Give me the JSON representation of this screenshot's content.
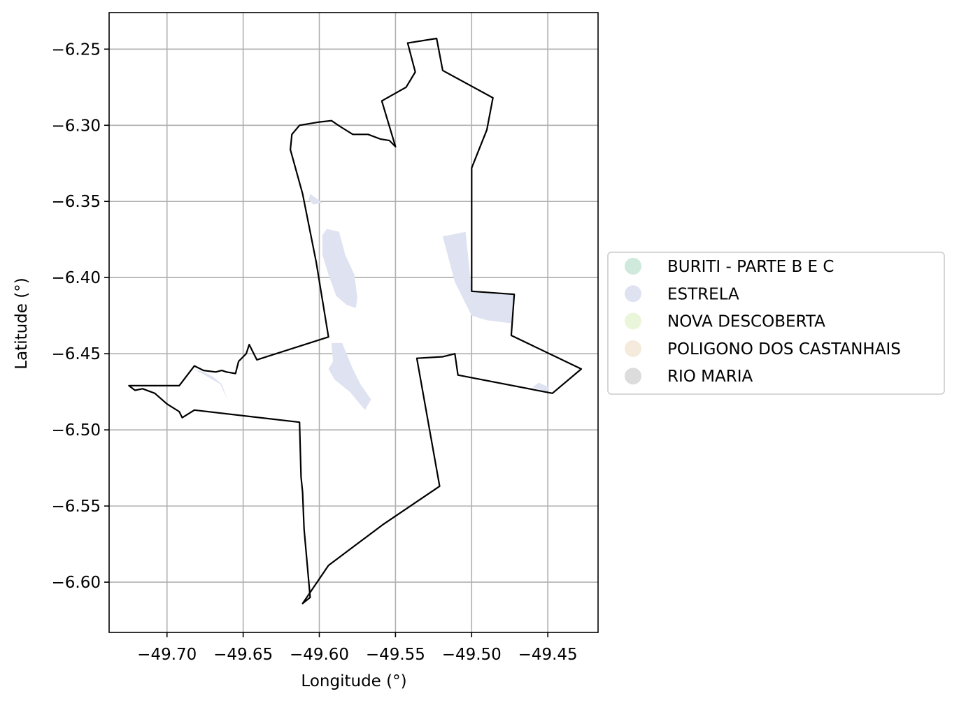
{
  "map": {
    "x_axis": {
      "label": "Longitude (°)",
      "ticks": [
        -49.7,
        -49.65,
        -49.6,
        -49.55,
        -49.5,
        -49.45
      ],
      "tick_labels": [
        "−49.70",
        "−49.65",
        "−49.60",
        "−49.55",
        "−49.50",
        "−49.45"
      ],
      "range": [
        -49.738,
        -49.417
      ]
    },
    "y_axis": {
      "label": "Latitude (°)",
      "ticks": [
        -6.25,
        -6.3,
        -6.35,
        -6.4,
        -6.45,
        -6.5,
        -6.55,
        -6.6
      ],
      "tick_labels": [
        "−6.25",
        "−6.30",
        "−6.35",
        "−6.40",
        "−6.45",
        "−6.50",
        "−6.55",
        "−6.60"
      ],
      "range": [
        -6.633,
        -6.226
      ]
    },
    "grid": true,
    "legend": {
      "placement": "right",
      "entries": [
        {
          "label": "BURITI - PARTE B E C",
          "color": "#cfe9dc"
        },
        {
          "label": "ESTRELA",
          "color": "#dfe3f1"
        },
        {
          "label": "NOVA DESCOBERTA",
          "color": "#eaf6da"
        },
        {
          "label": "POLIGONO DOS CASTANHAIS",
          "color": "#f5ebdc"
        },
        {
          "label": "RIO MARIA",
          "color": "#dcdcdc"
        }
      ]
    },
    "boundary_color": "#000000",
    "boundary": [
      [
        -49.542,
        -6.246
      ],
      [
        -49.523,
        -6.243
      ],
      [
        -49.519,
        -6.264
      ],
      [
        -49.486,
        -6.282
      ],
      [
        -49.49,
        -6.303
      ],
      [
        -49.5,
        -6.328
      ],
      [
        -49.5,
        -6.409
      ],
      [
        -49.472,
        -6.411
      ],
      [
        -49.474,
        -6.438
      ],
      [
        -49.428,
        -6.46
      ],
      [
        -49.447,
        -6.476
      ],
      [
        -49.509,
        -6.464
      ],
      [
        -49.511,
        -6.45
      ],
      [
        -49.519,
        -6.452
      ],
      [
        -49.536,
        -6.453
      ],
      [
        -49.521,
        -6.537
      ],
      [
        -49.558,
        -6.562
      ],
      [
        -49.594,
        -6.589
      ],
      [
        -49.611,
        -6.614
      ],
      [
        -49.606,
        -6.61
      ],
      [
        -49.61,
        -6.565
      ],
      [
        -49.611,
        -6.541
      ],
      [
        -49.612,
        -6.531
      ],
      [
        -49.613,
        -6.495
      ],
      [
        -49.682,
        -6.487
      ],
      [
        -49.69,
        -6.492
      ],
      [
        -49.692,
        -6.488
      ],
      [
        -49.7,
        -6.483
      ],
      [
        -49.708,
        -6.476
      ],
      [
        -49.716,
        -6.473
      ],
      [
        -49.721,
        -6.474
      ],
      [
        -49.725,
        -6.471
      ],
      [
        -49.692,
        -6.471
      ],
      [
        -49.682,
        -6.458
      ],
      [
        -49.676,
        -6.461
      ],
      [
        -49.668,
        -6.462
      ],
      [
        -49.664,
        -6.461
      ],
      [
        -49.661,
        -6.462
      ],
      [
        -49.655,
        -6.463
      ],
      [
        -49.653,
        -6.455
      ],
      [
        -49.648,
        -6.45
      ],
      [
        -49.646,
        -6.444
      ],
      [
        -49.641,
        -6.454
      ],
      [
        -49.594,
        -6.439
      ],
      [
        -49.602,
        -6.39
      ],
      [
        -49.611,
        -6.345
      ],
      [
        -49.619,
        -6.316
      ],
      [
        -49.618,
        -6.306
      ],
      [
        -49.613,
        -6.3
      ],
      [
        -49.601,
        -6.298
      ],
      [
        -49.592,
        -6.297
      ],
      [
        -49.586,
        -6.301
      ],
      [
        -49.578,
        -6.306
      ],
      [
        -49.568,
        -6.306
      ],
      [
        -49.56,
        -6.309
      ],
      [
        -49.554,
        -6.31
      ],
      [
        -49.55,
        -6.314
      ],
      [
        -49.559,
        -6.284
      ],
      [
        -49.543,
        -6.275
      ],
      [
        -49.537,
        -6.265
      ]
    ],
    "regions": [
      {
        "name": "ESTRELA",
        "points": [
          [
            -49.606,
            -6.345
          ],
          [
            -49.598,
            -6.351
          ],
          [
            -49.604,
            -6.352
          ],
          [
            -49.607,
            -6.349
          ]
        ]
      },
      {
        "name": "ESTRELA",
        "points": [
          [
            -49.595,
            -6.368
          ],
          [
            -49.587,
            -6.37
          ],
          [
            -49.583,
            -6.385
          ],
          [
            -49.577,
            -6.398
          ],
          [
            -49.575,
            -6.413
          ],
          [
            -49.576,
            -6.42
          ],
          [
            -49.582,
            -6.418
          ],
          [
            -49.589,
            -6.412
          ],
          [
            -49.594,
            -6.398
          ],
          [
            -49.598,
            -6.385
          ],
          [
            -49.598,
            -6.372
          ]
        ]
      },
      {
        "name": "ESTRELA",
        "points": [
          [
            -49.519,
            -6.373
          ],
          [
            -49.504,
            -6.37
          ],
          [
            -49.5,
            -6.409
          ],
          [
            -49.472,
            -6.411
          ],
          [
            -49.474,
            -6.43
          ],
          [
            -49.49,
            -6.428
          ],
          [
            -49.5,
            -6.425
          ],
          [
            -49.511,
            -6.403
          ]
        ]
      },
      {
        "name": "ESTRELA",
        "points": [
          [
            -49.592,
            -6.443
          ],
          [
            -49.585,
            -6.443
          ],
          [
            -49.578,
            -6.46
          ],
          [
            -49.573,
            -6.47
          ],
          [
            -49.566,
            -6.48
          ],
          [
            -49.57,
            -6.487
          ],
          [
            -49.58,
            -6.475
          ],
          [
            -49.59,
            -6.467
          ],
          [
            -49.594,
            -6.46
          ],
          [
            -49.591,
            -6.455
          ]
        ]
      },
      {
        "name": "ESTRELA",
        "points": [
          [
            -49.683,
            -6.46
          ],
          [
            -49.677,
            -6.463
          ],
          [
            -49.665,
            -6.47
          ],
          [
            -49.66,
            -6.481
          ],
          [
            -49.664,
            -6.47
          ],
          [
            -49.67,
            -6.465
          ],
          [
            -49.676,
            -6.462
          ]
        ]
      },
      {
        "name": "ESTRELA",
        "points": [
          [
            -49.46,
            -6.472
          ],
          [
            -49.451,
            -6.475
          ],
          [
            -49.449,
            -6.472
          ],
          [
            -49.456,
            -6.469
          ]
        ]
      }
    ]
  }
}
